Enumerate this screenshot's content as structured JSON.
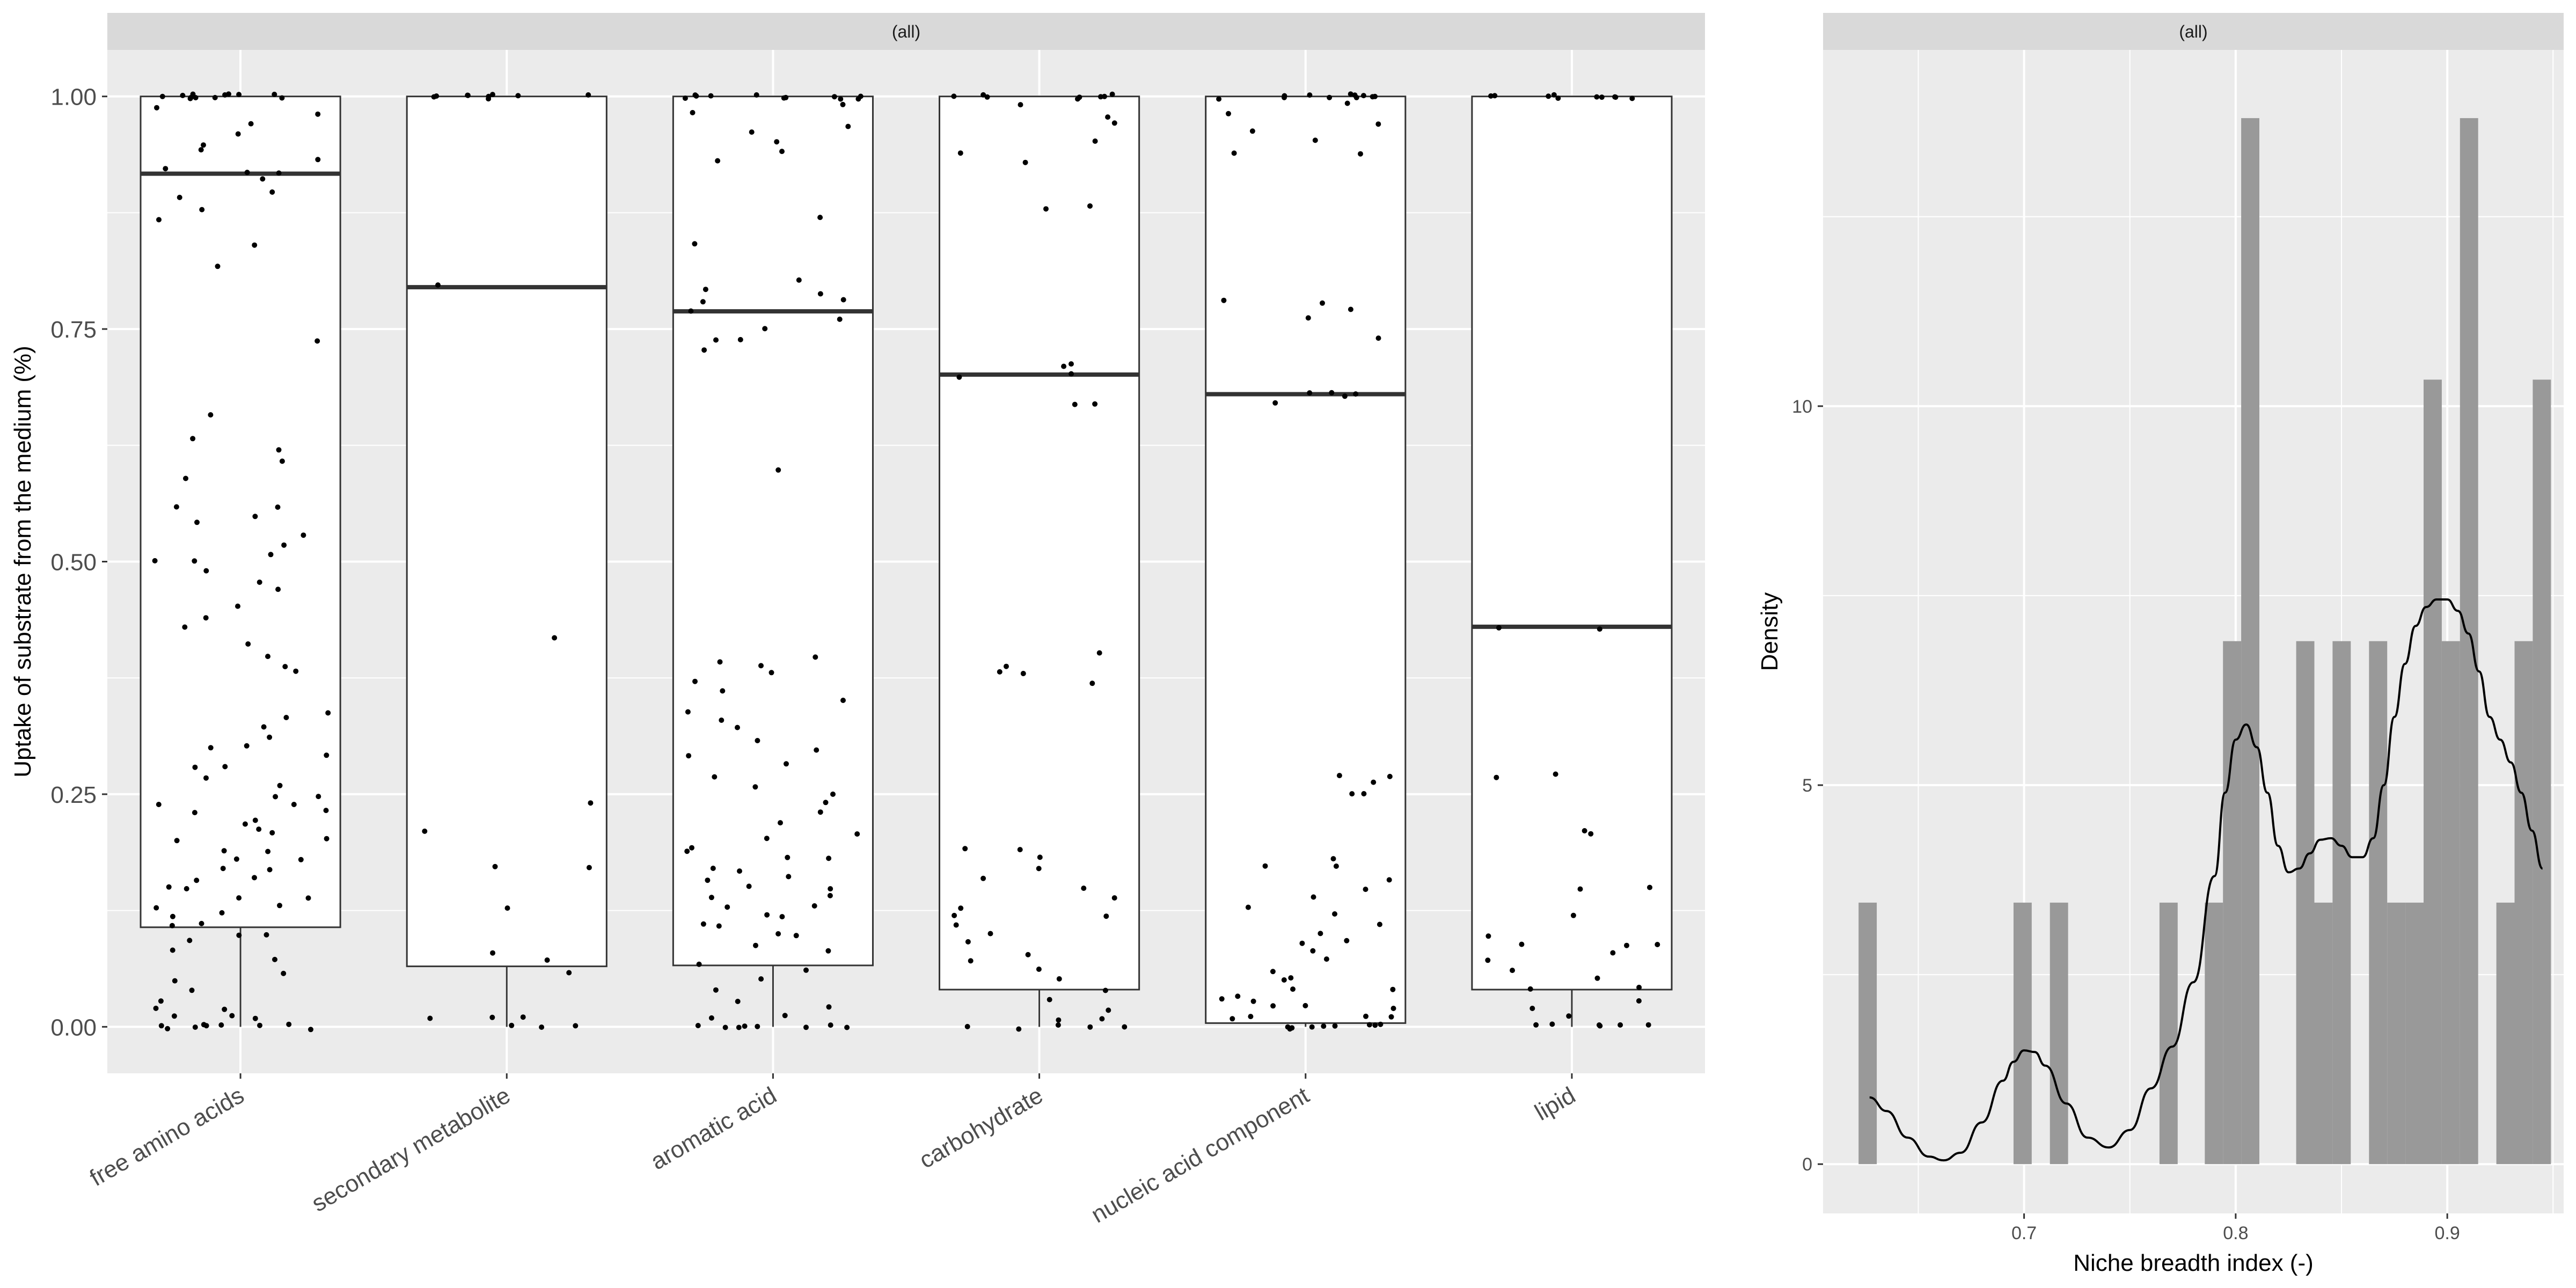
{
  "chart_data": [
    {
      "type": "boxplot",
      "panel_strip": "(all)",
      "title": "",
      "xlabel": "",
      "ylabel": "Uptake of substrate from the medium (%)",
      "ylim": [
        -0.05,
        1.05
      ],
      "yticks": [
        "0.00",
        "0.25",
        "0.50",
        "0.75",
        "1.00"
      ],
      "grid": true,
      "categories": [
        "free amino acids",
        "secondary metabolite",
        "aromatic acid",
        "carbohydrate",
        "nucleic acid component",
        "lipid"
      ],
      "boxes": [
        {
          "category": "free amino acids",
          "lower_whisker": 0.0,
          "q1": 0.107,
          "median": 0.917,
          "q3": 1.0,
          "upper_whisker": 1.0
        },
        {
          "category": "secondary metabolite",
          "lower_whisker": 0.0,
          "q1": 0.065,
          "median": 0.795,
          "q3": 1.0,
          "upper_whisker": 1.0
        },
        {
          "category": "aromatic acid",
          "lower_whisker": 0.0,
          "q1": 0.066,
          "median": 0.769,
          "q3": 1.0,
          "upper_whisker": 1.0
        },
        {
          "category": "carbohydrate",
          "lower_whisker": 0.0,
          "q1": 0.04,
          "median": 0.701,
          "q3": 1.0,
          "upper_whisker": 1.0
        },
        {
          "category": "nucleic acid component",
          "lower_whisker": 0.0,
          "q1": 0.004,
          "median": 0.68,
          "q3": 1.0,
          "upper_whisker": 1.0
        },
        {
          "category": "lipid",
          "lower_whisker": 0.0,
          "q1": 0.04,
          "median": 0.43,
          "q3": 1.0,
          "upper_whisker": 1.0
        }
      ],
      "jitter_points": [
        {
          "category": "free amino acids",
          "values": [
            1.0,
            1.0,
            1.0,
            1.0,
            1.0,
            1.0,
            1.0,
            1.0,
            1.0,
            1.0,
            1.0,
            1.0,
            0.99,
            0.98,
            0.97,
            0.96,
            0.95,
            0.94,
            0.93,
            0.92,
            0.92,
            0.92,
            0.91,
            0.9,
            0.89,
            0.88,
            0.87,
            0.84,
            0.82,
            0.74,
            0.66,
            0.63,
            0.62,
            0.61,
            0.59,
            0.56,
            0.56,
            0.55,
            0.54,
            0.53,
            0.52,
            0.51,
            0.5,
            0.5,
            0.49,
            0.48,
            0.47,
            0.45,
            0.44,
            0.43,
            0.41,
            0.4,
            0.39,
            0.38,
            0.34,
            0.33,
            0.32,
            0.31,
            0.3,
            0.3,
            0.29,
            0.28,
            0.28,
            0.27,
            0.26,
            0.25,
            0.25,
            0.24,
            0.24,
            0.23,
            0.23,
            0.22,
            0.22,
            0.21,
            0.21,
            0.2,
            0.2,
            0.19,
            0.19,
            0.18,
            0.18,
            0.17,
            0.17,
            0.16,
            0.16,
            0.15,
            0.15,
            0.14,
            0.14,
            0.13,
            0.13,
            0.12,
            0.12,
            0.11,
            0.11,
            0.1,
            0.1,
            0.09,
            0.08,
            0.07,
            0.06,
            0.05,
            0.04,
            0.03,
            0.02,
            0.02,
            0.01,
            0.01,
            0.01,
            0.0,
            0.0,
            0.0,
            0.0,
            0.0,
            0.0,
            0.0,
            0.0,
            0.0
          ]
        },
        {
          "category": "secondary metabolite",
          "values": [
            1.0,
            1.0,
            1.0,
            1.0,
            1.0,
            1.0,
            1.0,
            1.0,
            1.0,
            0.795,
            0.42,
            0.24,
            0.21,
            0.17,
            0.17,
            0.13,
            0.08,
            0.07,
            0.06,
            0.01,
            0.01,
            0.01,
            0.0,
            0.0,
            0.0
          ]
        },
        {
          "category": "aromatic acid",
          "values": [
            1.0,
            1.0,
            1.0,
            1.0,
            1.0,
            1.0,
            1.0,
            1.0,
            1.0,
            1.0,
            1.0,
            0.99,
            0.98,
            0.97,
            0.96,
            0.95,
            0.94,
            0.93,
            0.87,
            0.84,
            0.8,
            0.79,
            0.79,
            0.78,
            0.78,
            0.77,
            0.76,
            0.75,
            0.74,
            0.74,
            0.73,
            0.6,
            0.4,
            0.39,
            0.39,
            0.38,
            0.37,
            0.36,
            0.35,
            0.34,
            0.33,
            0.32,
            0.31,
            0.3,
            0.29,
            0.28,
            0.27,
            0.26,
            0.25,
            0.24,
            0.23,
            0.22,
            0.21,
            0.2,
            0.19,
            0.19,
            0.18,
            0.18,
            0.17,
            0.17,
            0.16,
            0.16,
            0.15,
            0.15,
            0.14,
            0.14,
            0.13,
            0.13,
            0.12,
            0.12,
            0.11,
            0.11,
            0.1,
            0.1,
            0.09,
            0.08,
            0.07,
            0.06,
            0.05,
            0.04,
            0.03,
            0.02,
            0.01,
            0.01,
            0.0,
            0.0,
            0.0,
            0.0,
            0.0,
            0.0,
            0.0,
            0.0
          ]
        },
        {
          "category": "carbohydrate",
          "values": [
            1.0,
            1.0,
            1.0,
            1.0,
            1.0,
            1.0,
            1.0,
            1.0,
            0.99,
            0.98,
            0.97,
            0.95,
            0.94,
            0.93,
            0.88,
            0.88,
            0.71,
            0.71,
            0.7,
            0.7,
            0.67,
            0.67,
            0.4,
            0.39,
            0.38,
            0.38,
            0.37,
            0.19,
            0.19,
            0.18,
            0.17,
            0.16,
            0.15,
            0.14,
            0.13,
            0.12,
            0.12,
            0.11,
            0.1,
            0.09,
            0.08,
            0.07,
            0.06,
            0.05,
            0.04,
            0.03,
            0.02,
            0.01,
            0.01,
            0.0,
            0.0,
            0.0,
            0.0,
            0.0
          ]
        },
        {
          "category": "nucleic acid component",
          "values": [
            1.0,
            1.0,
            1.0,
            1.0,
            1.0,
            1.0,
            1.0,
            1.0,
            1.0,
            1.0,
            1.0,
            0.99,
            0.98,
            0.97,
            0.96,
            0.95,
            0.94,
            0.94,
            0.78,
            0.78,
            0.77,
            0.76,
            0.74,
            0.68,
            0.68,
            0.68,
            0.68,
            0.67,
            0.27,
            0.27,
            0.26,
            0.25,
            0.25,
            0.18,
            0.17,
            0.17,
            0.16,
            0.15,
            0.14,
            0.13,
            0.12,
            0.11,
            0.1,
            0.09,
            0.09,
            0.08,
            0.07,
            0.06,
            0.05,
            0.05,
            0.04,
            0.04,
            0.03,
            0.03,
            0.03,
            0.02,
            0.02,
            0.02,
            0.01,
            0.01,
            0.01,
            0.01,
            0.0,
            0.0,
            0.0,
            0.0,
            0.0,
            0.0,
            0.0,
            0.0,
            0.0
          ]
        },
        {
          "category": "lipid",
          "values": [
            1.0,
            1.0,
            1.0,
            1.0,
            1.0,
            1.0,
            1.0,
            1.0,
            1.0,
            1.0,
            0.43,
            0.43,
            0.27,
            0.27,
            0.21,
            0.21,
            0.15,
            0.15,
            0.12,
            0.1,
            0.09,
            0.09,
            0.09,
            0.08,
            0.07,
            0.06,
            0.05,
            0.04,
            0.04,
            0.03,
            0.02,
            0.01,
            0.0,
            0.0,
            0.0,
            0.0,
            0.0,
            0.0
          ]
        }
      ]
    },
    {
      "type": "histogram",
      "panel_strip": "(all)",
      "title": "",
      "xlabel": "Niche breadth index (-)",
      "ylabel": "Density",
      "xlim": [
        0.605,
        0.955
      ],
      "ylim": [
        -0.65,
        14.7
      ],
      "xticks": [
        "0.7",
        "0.8",
        "0.9"
      ],
      "yticks": [
        "0",
        "5",
        "10"
      ],
      "grid": true,
      "bin_width": 0.0086,
      "bins": [
        {
          "x0": 0.6218,
          "x1": 0.6304,
          "density": 3.45
        },
        {
          "x0": 0.695,
          "x1": 0.7036,
          "density": 3.45
        },
        {
          "x0": 0.7122,
          "x1": 0.7208,
          "density": 3.45
        },
        {
          "x0": 0.764,
          "x1": 0.7726,
          "density": 3.45
        },
        {
          "x0": 0.7854,
          "x1": 0.794,
          "density": 3.45
        },
        {
          "x0": 0.794,
          "x1": 0.8026,
          "density": 6.9
        },
        {
          "x0": 0.8026,
          "x1": 0.8112,
          "density": 13.8
        },
        {
          "x0": 0.8286,
          "x1": 0.8372,
          "density": 6.9
        },
        {
          "x0": 0.8372,
          "x1": 0.8458,
          "density": 3.45
        },
        {
          "x0": 0.8458,
          "x1": 0.8544,
          "density": 6.9
        },
        {
          "x0": 0.863,
          "x1": 0.8716,
          "density": 6.9
        },
        {
          "x0": 0.8716,
          "x1": 0.8802,
          "density": 3.45
        },
        {
          "x0": 0.8802,
          "x1": 0.8888,
          "density": 3.45
        },
        {
          "x0": 0.8888,
          "x1": 0.8974,
          "density": 10.35
        },
        {
          "x0": 0.8974,
          "x1": 0.906,
          "density": 6.9
        },
        {
          "x0": 0.906,
          "x1": 0.9146,
          "density": 13.8
        },
        {
          "x0": 0.9232,
          "x1": 0.9318,
          "density": 3.45
        },
        {
          "x0": 0.9318,
          "x1": 0.9404,
          "density": 6.9
        },
        {
          "x0": 0.9404,
          "x1": 0.949,
          "density": 10.35
        }
      ],
      "density_curve": {
        "x": [
          0.627,
          0.635,
          0.645,
          0.655,
          0.662,
          0.67,
          0.68,
          0.69,
          0.695,
          0.7,
          0.705,
          0.71,
          0.72,
          0.73,
          0.74,
          0.75,
          0.76,
          0.77,
          0.78,
          0.79,
          0.795,
          0.8,
          0.805,
          0.81,
          0.815,
          0.82,
          0.825,
          0.83,
          0.835,
          0.84,
          0.845,
          0.85,
          0.855,
          0.86,
          0.865,
          0.87,
          0.875,
          0.88,
          0.885,
          0.89,
          0.895,
          0.9,
          0.905,
          0.91,
          0.915,
          0.92,
          0.925,
          0.93,
          0.935,
          0.94,
          0.945
        ],
        "y": [
          0.88,
          0.7,
          0.35,
          0.1,
          0.05,
          0.15,
          0.55,
          1.1,
          1.35,
          1.5,
          1.48,
          1.3,
          0.8,
          0.35,
          0.22,
          0.45,
          1.0,
          1.55,
          2.4,
          3.8,
          4.9,
          5.6,
          5.8,
          5.5,
          4.9,
          4.2,
          3.85,
          3.9,
          4.1,
          4.28,
          4.3,
          4.2,
          4.05,
          4.05,
          4.3,
          5.0,
          5.9,
          6.6,
          7.1,
          7.35,
          7.45,
          7.45,
          7.3,
          7.0,
          6.5,
          5.9,
          5.6,
          5.3,
          4.9,
          4.4,
          3.9
        ]
      }
    }
  ]
}
